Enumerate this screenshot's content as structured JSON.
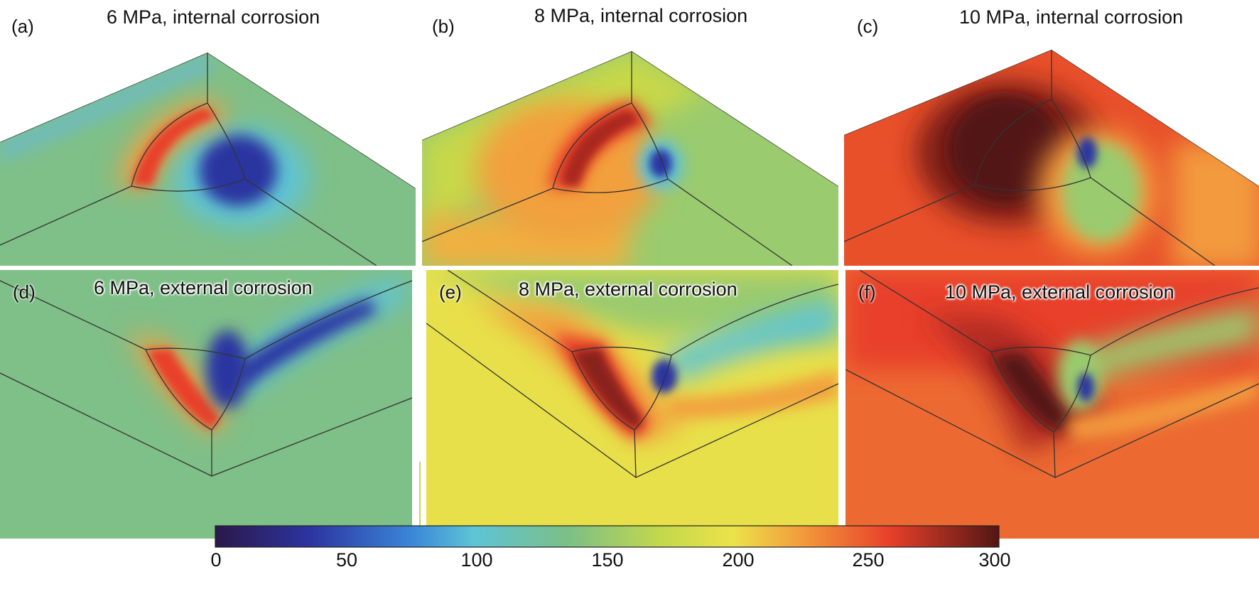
{
  "panels": [
    {
      "label": "(a)",
      "title": "6 MPa, internal corrosion"
    },
    {
      "label": "(b)",
      "title": "8 MPa, internal corrosion"
    },
    {
      "label": "(c)",
      "title": "10 MPa, internal corrosion"
    },
    {
      "label": "(d)",
      "title": "6 MPa, external corrosion"
    },
    {
      "label": "(e)",
      "title": "8 MPa, external corrosion"
    },
    {
      "label": "(f)",
      "title": "10 MPa, external corrosion"
    }
  ],
  "colorbar": {
    "ticks": [
      "0",
      "50",
      "100",
      "150",
      "200",
      "250",
      "300"
    ],
    "range": [
      0,
      300
    ],
    "colors": [
      "#2d1a4f",
      "#2a3aa8",
      "#3a7fd8",
      "#5fc6d8",
      "#7fc08a",
      "#c6d84a",
      "#eee24a",
      "#f0a040",
      "#ea4a2a",
      "#5a1a16"
    ]
  }
}
